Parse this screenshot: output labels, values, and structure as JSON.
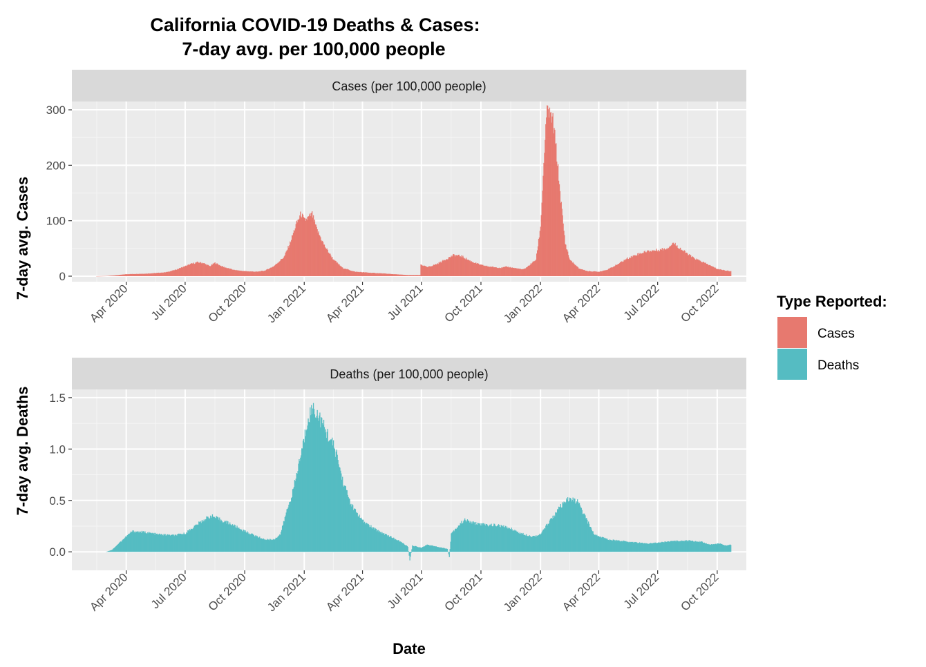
{
  "chart_data": {
    "type": "bar",
    "title_line1": "California COVID-19 Deaths & Cases:",
    "title_line2": "7-day avg. per 100,000 people",
    "xlabel": "Date",
    "x_ticks": [
      "Apr 2020",
      "Jul 2020",
      "Oct 2020",
      "Jan 2021",
      "Apr 2021",
      "Jul 2021",
      "Oct 2021",
      "Jan 2022",
      "Apr 2022",
      "Jul 2022",
      "Oct 2022"
    ],
    "x_range": [
      "2020-01-08",
      "2022-11-15"
    ],
    "legend": {
      "title": "Type Reported:",
      "entries": [
        {
          "label": "Cases",
          "color": "#E7796F"
        },
        {
          "label": "Deaths",
          "color": "#55BCC2"
        }
      ]
    },
    "panels": [
      {
        "strip": "Cases (per 100,000 people)",
        "ylabel": "7-day avg. Cases",
        "ylim": [
          -10,
          315
        ],
        "yticks": [
          0,
          100,
          200,
          300
        ],
        "ytick_labels": [
          "0",
          "100",
          "200",
          "300"
        ],
        "color": "#E7796F",
        "series": {
          "name": "Cases",
          "points": [
            [
              "2020-02-15",
              0
            ],
            [
              "2020-03-01",
              0.3
            ],
            [
              "2020-03-15",
              1.5
            ],
            [
              "2020-04-01",
              3.5
            ],
            [
              "2020-04-15",
              4
            ],
            [
              "2020-05-01",
              4.5
            ],
            [
              "2020-05-15",
              5.5
            ],
            [
              "2020-06-01",
              7
            ],
            [
              "2020-06-15",
              11
            ],
            [
              "2020-07-01",
              18
            ],
            [
              "2020-07-10",
              22
            ],
            [
              "2020-07-20",
              25
            ],
            [
              "2020-07-28",
              24
            ],
            [
              "2020-08-08",
              18
            ],
            [
              "2020-08-16",
              24
            ],
            [
              "2020-08-28",
              17
            ],
            [
              "2020-09-15",
              11
            ],
            [
              "2020-10-01",
              9
            ],
            [
              "2020-10-20",
              8
            ],
            [
              "2020-11-01",
              10
            ],
            [
              "2020-11-15",
              18
            ],
            [
              "2020-12-01",
              35
            ],
            [
              "2020-12-10",
              60
            ],
            [
              "2020-12-20",
              95
            ],
            [
              "2020-12-27",
              113
            ],
            [
              "2021-01-01",
              100
            ],
            [
              "2021-01-07",
              105
            ],
            [
              "2021-01-13",
              112
            ],
            [
              "2021-01-20",
              85
            ],
            [
              "2021-02-01",
              55
            ],
            [
              "2021-02-15",
              30
            ],
            [
              "2021-03-01",
              15
            ],
            [
              "2021-03-20",
              8
            ],
            [
              "2021-04-15",
              6
            ],
            [
              "2021-05-01",
              5
            ],
            [
              "2021-05-20",
              3.5
            ],
            [
              "2021-06-10",
              2
            ],
            [
              "2021-06-29",
              2
            ],
            [
              "2021-06-30",
              21
            ],
            [
              "2021-07-10",
              16
            ],
            [
              "2021-07-25",
              22
            ],
            [
              "2021-08-10",
              32
            ],
            [
              "2021-08-20",
              38
            ],
            [
              "2021-09-01",
              36
            ],
            [
              "2021-09-15",
              27
            ],
            [
              "2021-10-01",
              20
            ],
            [
              "2021-10-15",
              17
            ],
            [
              "2021-11-01",
              15
            ],
            [
              "2021-11-10",
              17
            ],
            [
              "2021-11-25",
              14
            ],
            [
              "2021-12-05",
              12
            ],
            [
              "2021-12-12",
              17
            ],
            [
              "2021-12-25",
              30
            ],
            [
              "2022-01-01",
              90
            ],
            [
              "2022-01-05",
              180
            ],
            [
              "2022-01-08",
              250
            ],
            [
              "2022-01-12",
              305
            ],
            [
              "2022-01-15",
              290
            ],
            [
              "2022-01-20",
              280
            ],
            [
              "2022-01-25",
              230
            ],
            [
              "2022-02-01",
              140
            ],
            [
              "2022-02-08",
              60
            ],
            [
              "2022-02-15",
              30
            ],
            [
              "2022-03-01",
              14
            ],
            [
              "2022-03-15",
              9
            ],
            [
              "2022-04-01",
              8
            ],
            [
              "2022-04-15",
              12
            ],
            [
              "2022-05-01",
              22
            ],
            [
              "2022-05-15",
              32
            ],
            [
              "2022-06-01",
              40
            ],
            [
              "2022-06-15",
              45
            ],
            [
              "2022-07-01",
              47
            ],
            [
              "2022-07-15",
              50
            ],
            [
              "2022-07-25",
              60
            ],
            [
              "2022-08-10",
              45
            ],
            [
              "2022-08-25",
              33
            ],
            [
              "2022-09-15",
              22
            ],
            [
              "2022-10-01",
              13
            ],
            [
              "2022-10-15",
              10
            ],
            [
              "2022-10-22",
              9
            ]
          ]
        }
      },
      {
        "strip": "Deaths (per 100,000 people)",
        "ylabel": "7-day avg. Deaths",
        "ylim": [
          -0.18,
          1.58
        ],
        "yticks": [
          0,
          0.5,
          1,
          1.5
        ],
        "ytick_labels": [
          "0.0",
          "0.5",
          "1.0",
          "1.5"
        ],
        "color": "#55BCC2",
        "series": {
          "name": "Deaths",
          "points": [
            [
              "2020-03-01",
              0
            ],
            [
              "2020-03-10",
              0.02
            ],
            [
              "2020-03-20",
              0.08
            ],
            [
              "2020-04-01",
              0.15
            ],
            [
              "2020-04-10",
              0.2
            ],
            [
              "2020-05-01",
              0.19
            ],
            [
              "2020-05-20",
              0.17
            ],
            [
              "2020-06-15",
              0.16
            ],
            [
              "2020-07-01",
              0.18
            ],
            [
              "2020-07-20",
              0.27
            ],
            [
              "2020-08-01",
              0.32
            ],
            [
              "2020-08-10",
              0.35
            ],
            [
              "2020-08-25",
              0.31
            ],
            [
              "2020-09-10",
              0.27
            ],
            [
              "2020-10-01",
              0.2
            ],
            [
              "2020-10-20",
              0.15
            ],
            [
              "2020-11-01",
              0.12
            ],
            [
              "2020-11-15",
              0.12
            ],
            [
              "2020-11-25",
              0.17
            ],
            [
              "2020-12-05",
              0.4
            ],
            [
              "2020-12-15",
              0.6
            ],
            [
              "2020-12-25",
              0.9
            ],
            [
              "2021-01-01",
              1.1
            ],
            [
              "2021-01-07",
              1.32
            ],
            [
              "2021-01-15",
              1.4
            ],
            [
              "2021-01-25",
              1.3
            ],
            [
              "2021-02-01",
              1.2
            ],
            [
              "2021-02-10",
              1.1
            ],
            [
              "2021-02-20",
              0.95
            ],
            [
              "2021-03-01",
              0.7
            ],
            [
              "2021-03-15",
              0.45
            ],
            [
              "2021-04-01",
              0.3
            ],
            [
              "2021-04-20",
              0.22
            ],
            [
              "2021-05-10",
              0.16
            ],
            [
              "2021-06-01",
              0.09
            ],
            [
              "2021-06-10",
              0.05
            ],
            [
              "2021-06-13",
              -0.08
            ],
            [
              "2021-06-17",
              0.06
            ],
            [
              "2021-07-01",
              0.04
            ],
            [
              "2021-07-10",
              0.07
            ],
            [
              "2021-07-25",
              0.05
            ],
            [
              "2021-08-10",
              0.03
            ],
            [
              "2021-08-13",
              -0.05
            ],
            [
              "2021-08-16",
              0.18
            ],
            [
              "2021-08-25",
              0.24
            ],
            [
              "2021-09-05",
              0.31
            ],
            [
              "2021-09-20",
              0.28
            ],
            [
              "2021-10-10",
              0.26
            ],
            [
              "2021-10-25",
              0.26
            ],
            [
              "2021-11-15",
              0.23
            ],
            [
              "2021-12-01",
              0.18
            ],
            [
              "2021-12-20",
              0.15
            ],
            [
              "2022-01-01",
              0.17
            ],
            [
              "2022-01-15",
              0.3
            ],
            [
              "2022-02-01",
              0.44
            ],
            [
              "2022-02-15",
              0.52
            ],
            [
              "2022-02-28",
              0.48
            ],
            [
              "2022-03-10",
              0.35
            ],
            [
              "2022-03-25",
              0.17
            ],
            [
              "2022-04-15",
              0.12
            ],
            [
              "2022-05-15",
              0.1
            ],
            [
              "2022-06-15",
              0.08
            ],
            [
              "2022-07-15",
              0.1
            ],
            [
              "2022-08-15",
              0.11
            ],
            [
              "2022-09-05",
              0.1
            ],
            [
              "2022-09-20",
              0.07
            ],
            [
              "2022-10-05",
              0.08
            ],
            [
              "2022-10-15",
              0.06
            ],
            [
              "2022-10-22",
              0.07
            ]
          ]
        }
      }
    ]
  }
}
